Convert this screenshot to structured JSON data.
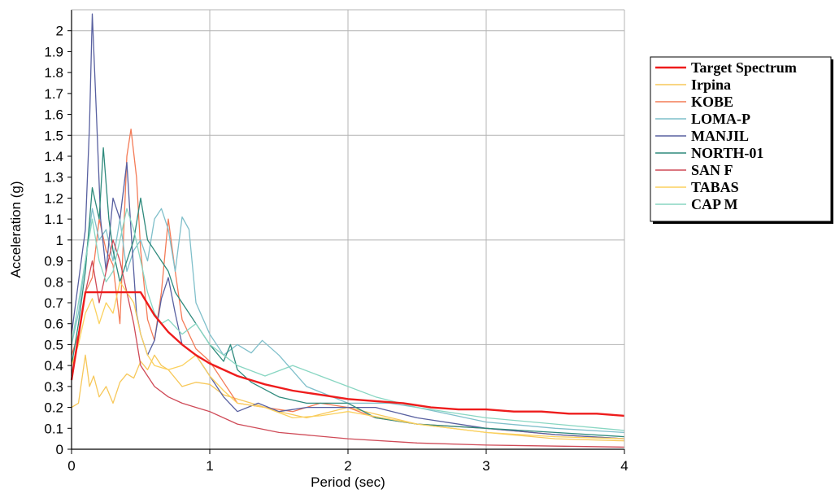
{
  "chart_data": {
    "type": "line",
    "title": "",
    "xlabel": "Period (sec)",
    "ylabel": "Acceleration (g)",
    "xlim": [
      0,
      4
    ],
    "ylim": [
      0,
      2.1
    ],
    "x_ticks": [
      "0",
      "1",
      "2",
      "3",
      "4"
    ],
    "y_ticks": [
      "0",
      "0.1",
      "0.2",
      "0.3",
      "0.4",
      "0.5",
      "0.6",
      "0.7",
      "0.8",
      "0.9",
      "1",
      "1.1",
      "1.2",
      "1.3",
      "1.4",
      "1.5",
      "1.6",
      "1.7",
      "1.8",
      "1.9",
      "2"
    ],
    "grid": true,
    "legend_position": "right",
    "series": [
      {
        "name": "Target Spectrum",
        "color": "#ee1c1c",
        "points": [
          [
            0.0,
            0.33
          ],
          [
            0.1,
            0.75
          ],
          [
            0.2,
            0.75
          ],
          [
            0.3,
            0.75
          ],
          [
            0.4,
            0.75
          ],
          [
            0.5,
            0.75
          ],
          [
            0.6,
            0.64
          ],
          [
            0.7,
            0.56
          ],
          [
            0.8,
            0.5
          ],
          [
            0.9,
            0.45
          ],
          [
            1.0,
            0.41
          ],
          [
            1.2,
            0.35
          ],
          [
            1.4,
            0.31
          ],
          [
            1.6,
            0.28
          ],
          [
            1.8,
            0.26
          ],
          [
            2.0,
            0.24
          ],
          [
            2.2,
            0.23
          ],
          [
            2.4,
            0.22
          ],
          [
            2.6,
            0.2
          ],
          [
            2.8,
            0.19
          ],
          [
            3.0,
            0.19
          ],
          [
            3.2,
            0.18
          ],
          [
            3.4,
            0.18
          ],
          [
            3.6,
            0.17
          ],
          [
            3.8,
            0.17
          ],
          [
            4.0,
            0.16
          ]
        ]
      },
      {
        "name": "Irpina",
        "color": "#f7c85a",
        "points": [
          [
            0.0,
            0.2
          ],
          [
            0.05,
            0.22
          ],
          [
            0.1,
            0.45
          ],
          [
            0.13,
            0.3
          ],
          [
            0.16,
            0.35
          ],
          [
            0.2,
            0.25
          ],
          [
            0.25,
            0.3
          ],
          [
            0.3,
            0.22
          ],
          [
            0.35,
            0.32
          ],
          [
            0.4,
            0.36
          ],
          [
            0.45,
            0.34
          ],
          [
            0.5,
            0.42
          ],
          [
            0.55,
            0.38
          ],
          [
            0.6,
            0.45
          ],
          [
            0.65,
            0.4
          ],
          [
            0.7,
            0.38
          ],
          [
            0.8,
            0.3
          ],
          [
            0.9,
            0.32
          ],
          [
            1.0,
            0.31
          ],
          [
            1.1,
            0.26
          ],
          [
            1.3,
            0.22
          ],
          [
            1.5,
            0.18
          ],
          [
            1.7,
            0.15
          ],
          [
            2.0,
            0.2
          ],
          [
            2.5,
            0.12
          ],
          [
            3.0,
            0.08
          ],
          [
            3.5,
            0.05
          ],
          [
            4.0,
            0.04
          ]
        ]
      },
      {
        "name": "KOBE",
        "color": "#f47b57",
        "points": [
          [
            0.0,
            0.45
          ],
          [
            0.05,
            0.55
          ],
          [
            0.1,
            0.75
          ],
          [
            0.15,
            0.82
          ],
          [
            0.2,
            1.1
          ],
          [
            0.25,
            0.95
          ],
          [
            0.3,
            0.88
          ],
          [
            0.35,
            0.6
          ],
          [
            0.4,
            1.4
          ],
          [
            0.43,
            1.53
          ],
          [
            0.47,
            1.3
          ],
          [
            0.5,
            0.95
          ],
          [
            0.55,
            0.62
          ],
          [
            0.6,
            0.52
          ],
          [
            0.65,
            0.75
          ],
          [
            0.7,
            1.1
          ],
          [
            0.75,
            0.85
          ],
          [
            0.8,
            0.62
          ],
          [
            0.9,
            0.48
          ],
          [
            1.0,
            0.42
          ],
          [
            1.1,
            0.32
          ],
          [
            1.2,
            0.22
          ],
          [
            1.4,
            0.2
          ],
          [
            1.6,
            0.18
          ],
          [
            1.8,
            0.22
          ],
          [
            2.0,
            0.2
          ],
          [
            2.2,
            0.15
          ],
          [
            2.5,
            0.12
          ],
          [
            3.0,
            0.1
          ],
          [
            3.5,
            0.07
          ],
          [
            4.0,
            0.05
          ]
        ]
      },
      {
        "name": "LOMA-P",
        "color": "#7fbfca",
        "points": [
          [
            0.0,
            0.5
          ],
          [
            0.05,
            0.65
          ],
          [
            0.1,
            0.9
          ],
          [
            0.15,
            1.15
          ],
          [
            0.2,
            1.0
          ],
          [
            0.25,
            1.05
          ],
          [
            0.3,
            0.9
          ],
          [
            0.35,
            1.1
          ],
          [
            0.4,
            0.85
          ],
          [
            0.45,
            0.95
          ],
          [
            0.5,
            1.0
          ],
          [
            0.55,
            0.9
          ],
          [
            0.6,
            1.1
          ],
          [
            0.65,
            1.15
          ],
          [
            0.7,
            1.05
          ],
          [
            0.75,
            0.85
          ],
          [
            0.8,
            1.11
          ],
          [
            0.85,
            1.05
          ],
          [
            0.9,
            0.7
          ],
          [
            1.0,
            0.55
          ],
          [
            1.1,
            0.45
          ],
          [
            1.2,
            0.5
          ],
          [
            1.3,
            0.46
          ],
          [
            1.38,
            0.52
          ],
          [
            1.5,
            0.45
          ],
          [
            1.7,
            0.3
          ],
          [
            2.0,
            0.22
          ],
          [
            2.3,
            0.22
          ],
          [
            2.5,
            0.2
          ],
          [
            3.0,
            0.13
          ],
          [
            3.5,
            0.1
          ],
          [
            4.0,
            0.08
          ]
        ]
      },
      {
        "name": "MANJIL",
        "color": "#5860a0",
        "points": [
          [
            0.0,
            0.55
          ],
          [
            0.05,
            0.8
          ],
          [
            0.1,
            1.05
          ],
          [
            0.13,
            1.55
          ],
          [
            0.15,
            2.08
          ],
          [
            0.18,
            1.6
          ],
          [
            0.21,
            1.1
          ],
          [
            0.25,
            0.85
          ],
          [
            0.3,
            1.2
          ],
          [
            0.35,
            1.1
          ],
          [
            0.4,
            1.37
          ],
          [
            0.43,
            1.05
          ],
          [
            0.47,
            0.65
          ],
          [
            0.5,
            0.55
          ],
          [
            0.55,
            0.45
          ],
          [
            0.6,
            0.52
          ],
          [
            0.65,
            0.72
          ],
          [
            0.7,
            0.82
          ],
          [
            0.75,
            0.65
          ],
          [
            0.8,
            0.5
          ],
          [
            0.9,
            0.45
          ],
          [
            1.0,
            0.35
          ],
          [
            1.1,
            0.25
          ],
          [
            1.2,
            0.18
          ],
          [
            1.35,
            0.22
          ],
          [
            1.5,
            0.18
          ],
          [
            1.7,
            0.2
          ],
          [
            2.0,
            0.2
          ],
          [
            2.2,
            0.2
          ],
          [
            2.5,
            0.15
          ],
          [
            3.0,
            0.1
          ],
          [
            3.5,
            0.07
          ],
          [
            4.0,
            0.05
          ]
        ]
      },
      {
        "name": "NORTH-01",
        "color": "#2e8a7c",
        "points": [
          [
            0.0,
            0.4
          ],
          [
            0.05,
            0.6
          ],
          [
            0.1,
            0.85
          ],
          [
            0.15,
            1.25
          ],
          [
            0.2,
            1.1
          ],
          [
            0.23,
            1.44
          ],
          [
            0.27,
            1.1
          ],
          [
            0.3,
            0.95
          ],
          [
            0.35,
            0.8
          ],
          [
            0.4,
            0.9
          ],
          [
            0.45,
            1.0
          ],
          [
            0.5,
            1.2
          ],
          [
            0.55,
            1.0
          ],
          [
            0.6,
            0.95
          ],
          [
            0.65,
            0.9
          ],
          [
            0.7,
            0.85
          ],
          [
            0.75,
            0.75
          ],
          [
            0.8,
            0.7
          ],
          [
            0.9,
            0.6
          ],
          [
            1.0,
            0.5
          ],
          [
            1.1,
            0.42
          ],
          [
            1.15,
            0.5
          ],
          [
            1.2,
            0.38
          ],
          [
            1.3,
            0.32
          ],
          [
            1.5,
            0.25
          ],
          [
            1.7,
            0.22
          ],
          [
            2.0,
            0.22
          ],
          [
            2.2,
            0.15
          ],
          [
            2.5,
            0.12
          ],
          [
            3.0,
            0.1
          ],
          [
            3.5,
            0.08
          ],
          [
            4.0,
            0.06
          ]
        ]
      },
      {
        "name": "SAN F",
        "color": "#cf4a57",
        "points": [
          [
            0.0,
            0.35
          ],
          [
            0.05,
            0.55
          ],
          [
            0.1,
            0.75
          ],
          [
            0.15,
            0.9
          ],
          [
            0.2,
            0.7
          ],
          [
            0.25,
            0.85
          ],
          [
            0.3,
            1.0
          ],
          [
            0.35,
            0.9
          ],
          [
            0.4,
            0.75
          ],
          [
            0.45,
            0.6
          ],
          [
            0.5,
            0.4
          ],
          [
            0.55,
            0.35
          ],
          [
            0.6,
            0.3
          ],
          [
            0.7,
            0.25
          ],
          [
            0.8,
            0.22
          ],
          [
            0.9,
            0.2
          ],
          [
            1.0,
            0.18
          ],
          [
            1.2,
            0.12
          ],
          [
            1.5,
            0.08
          ],
          [
            2.0,
            0.05
          ],
          [
            2.5,
            0.03
          ],
          [
            3.0,
            0.02
          ],
          [
            4.0,
            0.01
          ]
        ]
      },
      {
        "name": "TABAS",
        "color": "#fbd15e",
        "points": [
          [
            0.0,
            0.4
          ],
          [
            0.05,
            0.5
          ],
          [
            0.1,
            0.65
          ],
          [
            0.15,
            0.72
          ],
          [
            0.2,
            0.6
          ],
          [
            0.25,
            0.7
          ],
          [
            0.3,
            0.65
          ],
          [
            0.35,
            0.8
          ],
          [
            0.4,
            0.75
          ],
          [
            0.45,
            0.7
          ],
          [
            0.5,
            0.55
          ],
          [
            0.55,
            0.45
          ],
          [
            0.6,
            0.4
          ],
          [
            0.7,
            0.38
          ],
          [
            0.8,
            0.4
          ],
          [
            0.9,
            0.45
          ],
          [
            1.0,
            0.35
          ],
          [
            1.1,
            0.28
          ],
          [
            1.2,
            0.22
          ],
          [
            1.4,
            0.2
          ],
          [
            1.6,
            0.15
          ],
          [
            1.8,
            0.16
          ],
          [
            2.0,
            0.18
          ],
          [
            2.5,
            0.12
          ],
          [
            3.0,
            0.08
          ],
          [
            3.5,
            0.06
          ],
          [
            4.0,
            0.05
          ]
        ]
      },
      {
        "name": "CAP M",
        "color": "#88d6c2",
        "points": [
          [
            0.0,
            0.5
          ],
          [
            0.05,
            0.7
          ],
          [
            0.1,
            0.9
          ],
          [
            0.15,
            1.1
          ],
          [
            0.2,
            0.9
          ],
          [
            0.25,
            0.8
          ],
          [
            0.3,
            0.85
          ],
          [
            0.35,
            1.0
          ],
          [
            0.4,
            1.15
          ],
          [
            0.45,
            1.05
          ],
          [
            0.5,
            0.9
          ],
          [
            0.55,
            0.75
          ],
          [
            0.6,
            0.65
          ],
          [
            0.65,
            0.6
          ],
          [
            0.7,
            0.62
          ],
          [
            0.8,
            0.55
          ],
          [
            0.9,
            0.6
          ],
          [
            1.0,
            0.5
          ],
          [
            1.1,
            0.45
          ],
          [
            1.2,
            0.4
          ],
          [
            1.4,
            0.35
          ],
          [
            1.6,
            0.4
          ],
          [
            1.8,
            0.35
          ],
          [
            2.0,
            0.3
          ],
          [
            2.2,
            0.25
          ],
          [
            2.5,
            0.2
          ],
          [
            3.0,
            0.15
          ],
          [
            3.5,
            0.12
          ],
          [
            4.0,
            0.09
          ]
        ]
      }
    ]
  }
}
